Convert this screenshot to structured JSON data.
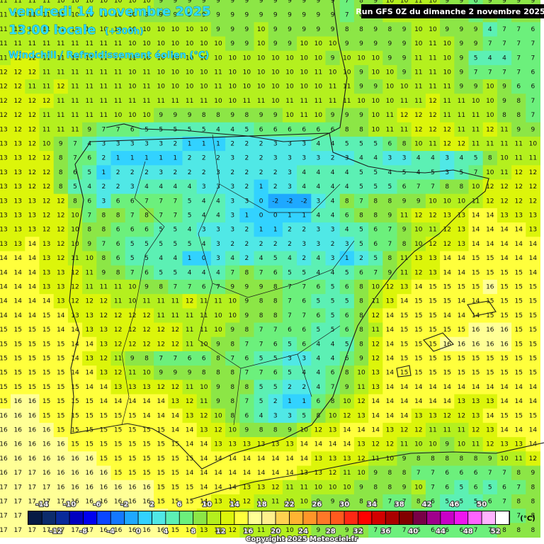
{
  "header": {
    "date": "vendredi 14 novembre 2025",
    "time": "13:00 locale",
    "lead": "(+300h)",
    "variable": "Windchill / Refroidissement éolien (°C)",
    "run": "Run GFS 0Z du dimanche 2 novembre 2025"
  },
  "grid": {
    "values": [
      [
        11,
        11,
        11,
        11,
        10,
        10,
        10,
        10,
        10,
        10,
        10,
        9,
        9,
        9,
        9,
        9,
        9,
        9,
        9,
        9,
        9,
        9,
        9,
        9,
        7,
        8,
        9,
        10,
        10,
        11,
        10,
        9,
        9,
        6,
        9,
        9,
        9,
        9
      ],
      [
        11,
        11,
        11,
        11,
        11,
        10,
        10,
        10,
        10,
        10,
        9,
        9,
        9,
        9,
        9,
        9,
        9,
        9,
        9,
        9,
        9,
        9,
        9,
        9,
        7,
        8,
        9,
        10,
        10,
        11,
        10,
        9,
        9,
        6,
        9,
        6,
        9,
        9
      ],
      [
        11,
        11,
        11,
        11,
        11,
        11,
        10,
        10,
        10,
        10,
        10,
        10,
        10,
        10,
        10,
        9,
        9,
        9,
        10,
        9,
        9,
        9,
        9,
        9,
        8,
        8,
        9,
        8,
        9,
        10,
        10,
        9,
        9,
        9,
        4,
        7,
        7,
        6
      ],
      [
        11,
        11,
        11,
        11,
        11,
        11,
        11,
        11,
        11,
        10,
        10,
        10,
        10,
        10,
        10,
        10,
        9,
        9,
        10,
        9,
        9,
        10,
        10,
        10,
        9,
        9,
        9,
        9,
        9,
        10,
        11,
        10,
        9,
        9,
        7,
        7,
        7,
        7
      ],
      [
        11,
        12,
        12,
        11,
        11,
        11,
        11,
        11,
        11,
        11,
        10,
        10,
        10,
        10,
        10,
        10,
        10,
        10,
        10,
        10,
        10,
        10,
        10,
        9,
        10,
        10,
        10,
        9,
        9,
        11,
        11,
        10,
        9,
        5,
        4,
        4,
        7,
        7
      ],
      [
        12,
        12,
        12,
        11,
        11,
        11,
        11,
        11,
        11,
        10,
        11,
        10,
        10,
        10,
        10,
        11,
        10,
        10,
        10,
        10,
        10,
        10,
        11,
        10,
        10,
        9,
        10,
        10,
        9,
        11,
        11,
        10,
        9,
        7,
        7,
        7,
        7,
        6
      ],
      [
        12,
        12,
        11,
        11,
        12,
        11,
        11,
        11,
        11,
        10,
        11,
        10,
        10,
        10,
        10,
        11,
        10,
        10,
        10,
        10,
        10,
        10,
        10,
        11,
        11,
        9,
        9,
        10,
        10,
        11,
        11,
        11,
        9,
        9,
        10,
        9,
        6,
        6
      ],
      [
        12,
        12,
        12,
        12,
        11,
        11,
        11,
        11,
        11,
        11,
        11,
        11,
        11,
        11,
        11,
        10,
        10,
        11,
        11,
        10,
        11,
        11,
        11,
        11,
        11,
        10,
        10,
        10,
        11,
        11,
        12,
        11,
        11,
        10,
        10,
        9,
        8,
        7
      ],
      [
        12,
        12,
        12,
        11,
        11,
        11,
        11,
        11,
        10,
        10,
        10,
        9,
        9,
        9,
        8,
        8,
        9,
        8,
        9,
        9,
        10,
        11,
        10,
        9,
        9,
        9,
        10,
        11,
        12,
        12,
        12,
        11,
        11,
        11,
        10,
        8,
        8,
        7
      ],
      [
        13,
        12,
        12,
        11,
        11,
        11,
        9,
        7,
        7,
        6,
        5,
        5,
        5,
        5,
        5,
        4,
        4,
        5,
        6,
        6,
        6,
        6,
        6,
        6,
        8,
        8,
        10,
        11,
        11,
        12,
        12,
        12,
        11,
        11,
        12,
        11,
        9,
        9
      ],
      [
        13,
        13,
        12,
        10,
        9,
        7,
        4,
        3,
        3,
        3,
        3,
        3,
        2,
        1,
        1,
        1,
        2,
        2,
        2,
        3,
        3,
        3,
        4,
        4,
        5,
        5,
        5,
        6,
        8,
        10,
        11,
        12,
        12,
        11,
        11,
        11,
        11,
        10
      ],
      [
        13,
        13,
        12,
        12,
        8,
        7,
        6,
        2,
        1,
        1,
        1,
        1,
        1,
        2,
        2,
        2,
        3,
        2,
        2,
        3,
        3,
        3,
        3,
        2,
        3,
        4,
        4,
        3,
        3,
        4,
        4,
        3,
        4,
        5,
        8,
        10,
        11,
        11
      ],
      [
        13,
        13,
        12,
        12,
        8,
        6,
        5,
        1,
        2,
        2,
        2,
        3,
        2,
        2,
        2,
        3,
        2,
        2,
        2,
        2,
        3,
        4,
        4,
        4,
        4,
        5,
        5,
        4,
        5,
        4,
        5,
        3,
        5,
        7,
        10,
        11,
        12,
        12
      ],
      [
        13,
        13,
        12,
        12,
        8,
        5,
        4,
        2,
        2,
        3,
        4,
        4,
        4,
        4,
        3,
        3,
        3,
        2,
        1,
        2,
        3,
        4,
        4,
        4,
        4,
        5,
        5,
        5,
        6,
        7,
        7,
        8,
        8,
        10,
        12,
        12,
        12,
        12
      ],
      [
        13,
        13,
        13,
        12,
        12,
        8,
        6,
        3,
        6,
        6,
        7,
        7,
        7,
        5,
        4,
        4,
        3,
        3,
        0,
        -2,
        -2,
        -2,
        3,
        4,
        8,
        7,
        8,
        8,
        9,
        9,
        10,
        10,
        10,
        11,
        12,
        12,
        12,
        12
      ],
      [
        13,
        13,
        13,
        12,
        12,
        10,
        7,
        8,
        8,
        7,
        8,
        7,
        7,
        5,
        4,
        4,
        3,
        1,
        0,
        0,
        1,
        1,
        4,
        4,
        6,
        8,
        8,
        9,
        11,
        12,
        12,
        13,
        13,
        14,
        14,
        13,
        13,
        13
      ],
      [
        13,
        13,
        13,
        12,
        12,
        10,
        8,
        8,
        6,
        6,
        6,
        5,
        5,
        4,
        3,
        3,
        3,
        2,
        1,
        1,
        2,
        2,
        3,
        3,
        4,
        5,
        6,
        7,
        9,
        10,
        11,
        12,
        13,
        14,
        14,
        14,
        14,
        13
      ],
      [
        13,
        13,
        14,
        13,
        12,
        10,
        9,
        7,
        6,
        5,
        5,
        5,
        5,
        5,
        4,
        3,
        2,
        2,
        2,
        2,
        2,
        3,
        3,
        2,
        3,
        5,
        6,
        7,
        8,
        10,
        12,
        12,
        13,
        14,
        14,
        14,
        14,
        14
      ],
      [
        14,
        14,
        14,
        13,
        12,
        11,
        10,
        8,
        6,
        5,
        5,
        4,
        4,
        1,
        0,
        3,
        4,
        2,
        4,
        5,
        4,
        2,
        4,
        3,
        1,
        2,
        5,
        8,
        11,
        13,
        13,
        14,
        14,
        15,
        15,
        14,
        14,
        14
      ],
      [
        14,
        14,
        14,
        13,
        13,
        12,
        11,
        9,
        8,
        7,
        6,
        5,
        5,
        4,
        4,
        4,
        7,
        8,
        7,
        6,
        5,
        5,
        4,
        4,
        5,
        6,
        7,
        9,
        11,
        12,
        13,
        14,
        14,
        15,
        15,
        15,
        15,
        14
      ],
      [
        14,
        14,
        14,
        13,
        13,
        12,
        11,
        11,
        11,
        10,
        9,
        8,
        7,
        7,
        6,
        7,
        9,
        9,
        9,
        8,
        7,
        7,
        6,
        5,
        6,
        8,
        10,
        12,
        13,
        14,
        15,
        15,
        15,
        15,
        16,
        15,
        15,
        15
      ],
      [
        14,
        14,
        14,
        14,
        13,
        12,
        12,
        12,
        11,
        10,
        11,
        11,
        11,
        12,
        11,
        11,
        10,
        9,
        8,
        8,
        7,
        6,
        5,
        5,
        5,
        8,
        11,
        13,
        14,
        15,
        15,
        15,
        14,
        14,
        15,
        15,
        15,
        15
      ],
      [
        14,
        14,
        14,
        15,
        14,
        13,
        13,
        12,
        12,
        12,
        12,
        11,
        11,
        11,
        11,
        10,
        10,
        9,
        8,
        8,
        7,
        7,
        6,
        5,
        6,
        8,
        12,
        14,
        15,
        15,
        15,
        14,
        14,
        14,
        15,
        15,
        15,
        15
      ],
      [
        15,
        15,
        15,
        15,
        14,
        14,
        13,
        13,
        12,
        12,
        12,
        12,
        12,
        11,
        11,
        10,
        9,
        8,
        7,
        7,
        6,
        6,
        5,
        5,
        6,
        8,
        11,
        14,
        15,
        15,
        15,
        15,
        15,
        16,
        16,
        16,
        15,
        15
      ],
      [
        15,
        15,
        15,
        15,
        15,
        14,
        14,
        13,
        12,
        12,
        12,
        12,
        12,
        11,
        10,
        9,
        8,
        7,
        7,
        6,
        5,
        6,
        4,
        4,
        5,
        8,
        12,
        14,
        15,
        15,
        15,
        16,
        16,
        16,
        16,
        16,
        15,
        15
      ],
      [
        15,
        15,
        15,
        15,
        15,
        14,
        13,
        12,
        11,
        9,
        8,
        7,
        7,
        6,
        6,
        8,
        7,
        6,
        5,
        5,
        3,
        3,
        4,
        4,
        6,
        9,
        12,
        14,
        15,
        15,
        15,
        15,
        15,
        15,
        15,
        15,
        15,
        15
      ],
      [
        15,
        15,
        15,
        15,
        15,
        14,
        14,
        13,
        12,
        11,
        10,
        9,
        9,
        9,
        8,
        8,
        8,
        7,
        7,
        6,
        5,
        4,
        4,
        6,
        8,
        10,
        13,
        14,
        15,
        15,
        15,
        15,
        15,
        15,
        15,
        15,
        15,
        15
      ],
      [
        15,
        15,
        15,
        15,
        15,
        15,
        14,
        14,
        13,
        13,
        13,
        12,
        12,
        11,
        10,
        9,
        8,
        8,
        5,
        5,
        2,
        2,
        4,
        7,
        9,
        11,
        13,
        14,
        14,
        14,
        14,
        14,
        14,
        14,
        14,
        14,
        14,
        14
      ],
      [
        15,
        16,
        16,
        15,
        15,
        15,
        15,
        14,
        14,
        14,
        14,
        14,
        13,
        12,
        11,
        9,
        8,
        7,
        5,
        2,
        1,
        1,
        6,
        8,
        10,
        12,
        14,
        14,
        14,
        14,
        14,
        14,
        13,
        13,
        13,
        14,
        14,
        14
      ],
      [
        16,
        16,
        16,
        15,
        15,
        15,
        15,
        15,
        15,
        15,
        14,
        14,
        14,
        13,
        12,
        10,
        8,
        6,
        4,
        3,
        3,
        5,
        8,
        10,
        12,
        13,
        14,
        14,
        14,
        13,
        13,
        12,
        12,
        13,
        14,
        15,
        15,
        15
      ],
      [
        16,
        16,
        16,
        16,
        15,
        15,
        15,
        15,
        15,
        15,
        15,
        15,
        14,
        14,
        13,
        12,
        10,
        9,
        8,
        8,
        9,
        10,
        12,
        13,
        14,
        14,
        14,
        13,
        12,
        12,
        11,
        11,
        11,
        12,
        13,
        14,
        14,
        14
      ],
      [
        16,
        16,
        16,
        16,
        16,
        15,
        15,
        15,
        15,
        15,
        15,
        15,
        15,
        14,
        14,
        13,
        13,
        13,
        13,
        13,
        13,
        14,
        14,
        14,
        14,
        13,
        12,
        12,
        11,
        10,
        10,
        9,
        10,
        11,
        12,
        13,
        13,
        14
      ],
      [
        16,
        16,
        16,
        16,
        16,
        16,
        16,
        15,
        15,
        15,
        15,
        15,
        15,
        15,
        14,
        14,
        14,
        14,
        14,
        14,
        14,
        14,
        13,
        13,
        13,
        12,
        11,
        10,
        9,
        8,
        8,
        8,
        8,
        8,
        9,
        10,
        11,
        12
      ],
      [
        16,
        17,
        17,
        16,
        16,
        16,
        16,
        16,
        15,
        15,
        15,
        15,
        15,
        14,
        14,
        14,
        14,
        14,
        14,
        14,
        14,
        13,
        13,
        12,
        11,
        10,
        9,
        8,
        8,
        7,
        7,
        6,
        6,
        6,
        7,
        7,
        8,
        9
      ],
      [
        17,
        17,
        17,
        17,
        16,
        16,
        16,
        16,
        16,
        16,
        16,
        15,
        15,
        15,
        14,
        14,
        14,
        13,
        13,
        12,
        11,
        11,
        10,
        10,
        10,
        9,
        8,
        8,
        9,
        10,
        7,
        6,
        5,
        6,
        5,
        6,
        7,
        8
      ],
      [
        17,
        17,
        17,
        17,
        17,
        16,
        16,
        16,
        16,
        16,
        16,
        15,
        15,
        15,
        14,
        13,
        13,
        12,
        11,
        11,
        10,
        10,
        9,
        9,
        8,
        8,
        8,
        7,
        7,
        8,
        6,
        5,
        5,
        5,
        6,
        7,
        8,
        8
      ],
      [
        17,
        17,
        17,
        17,
        17,
        17,
        16,
        16,
        16,
        16,
        16,
        16,
        15,
        14,
        13,
        12,
        12,
        11,
        11,
        10,
        10,
        9,
        9,
        8,
        8,
        8,
        7,
        7,
        6,
        6,
        6,
        5,
        5,
        6,
        6,
        7,
        7,
        8
      ],
      [
        17,
        17,
        17,
        17,
        17,
        17,
        17,
        16,
        16,
        16,
        16,
        16,
        15,
        14,
        13,
        12,
        12,
        11,
        11,
        10,
        10,
        10,
        9,
        9,
        9,
        8,
        7,
        7,
        7,
        6,
        6,
        6,
        6,
        7,
        7,
        8,
        8,
        8
      ]
    ]
  },
  "legend": {
    "ticks": [
      -14,
      -12,
      -10,
      -8,
      -6,
      -4,
      -2,
      0,
      2,
      4,
      6,
      8,
      10,
      12,
      14,
      16,
      18,
      20,
      22,
      24,
      26,
      28,
      30,
      32,
      34,
      36,
      38,
      40,
      42,
      44,
      46,
      48,
      50,
      52
    ],
    "colors": [
      "#061a44",
      "#0c2c6c",
      "#082a9a",
      "#0000c0",
      "#0000f0",
      "#0a46ff",
      "#1478ff",
      "#1ea8ff",
      "#32d2ff",
      "#50e8e6",
      "#5cf0b4",
      "#6cf07c",
      "#8ce646",
      "#b4f01e",
      "#dcf50a",
      "#ffff3c",
      "#ffff96",
      "#fff08c",
      "#ffd250",
      "#ffb432",
      "#ff9628",
      "#ff7828",
      "#ff5a1e",
      "#ff2814",
      "#ff0000",
      "#d20000",
      "#aa0000",
      "#820000",
      "#780046",
      "#a0008c",
      "#c800c8",
      "#f014f0",
      "#ff64ff",
      "#ffb4ff",
      "#ffffff"
    ],
    "unit": "(°C)"
  },
  "footer": {
    "copyright": "Copyright 2025 Meteociel.fr"
  }
}
